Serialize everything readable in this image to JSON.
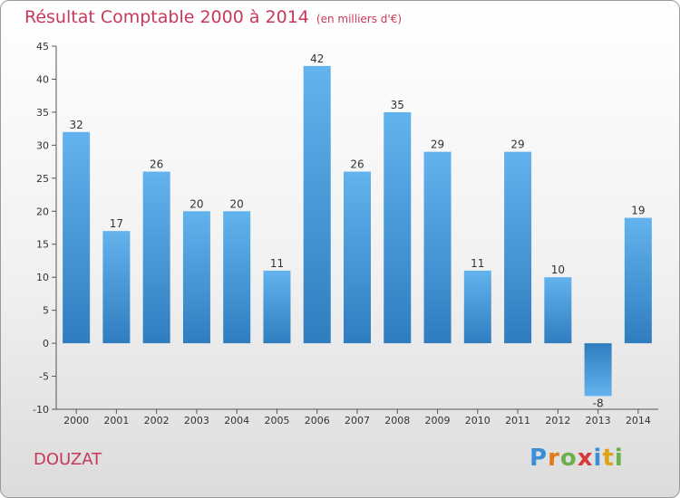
{
  "title": "Résultat Comptable 2000 à 2014",
  "subtitle": "(en milliers d'€)",
  "commune": "DOUZAT",
  "logo": {
    "letters": [
      "P",
      "r",
      "o",
      "x",
      "i",
      "t",
      "i"
    ],
    "colors": [
      "#3a8fd6",
      "#e07b1a",
      "#6ab04c",
      "#d63a3a",
      "#3a8fd6",
      "#e0a21a",
      "#6ab04c"
    ]
  },
  "colors": {
    "bar_light": "#63b3ee",
    "bar_dark": "#2f7dbf",
    "text": "#c8385a"
  },
  "chart_data": {
    "type": "bar",
    "title": "Résultat Comptable 2000 à 2014",
    "ylabel": "en milliers d'€",
    "categories": [
      "2000",
      "2001",
      "2002",
      "2003",
      "2004",
      "2005",
      "2006",
      "2007",
      "2008",
      "2009",
      "2010",
      "2011",
      "2012",
      "2013",
      "2014"
    ],
    "values": [
      32,
      17,
      26,
      20,
      20,
      11,
      42,
      26,
      35,
      29,
      11,
      29,
      10,
      -8,
      19
    ],
    "value_labels": [
      "32",
      "17",
      "26",
      "20",
      "20",
      "11",
      "42",
      "26",
      "35",
      "29",
      "11",
      "29",
      "10",
      "-8",
      "19"
    ],
    "ylim": [
      -10,
      45
    ],
    "yticks": [
      -10,
      -5,
      0,
      5,
      10,
      15,
      20,
      25,
      30,
      35,
      40,
      45
    ],
    "grid": false
  }
}
